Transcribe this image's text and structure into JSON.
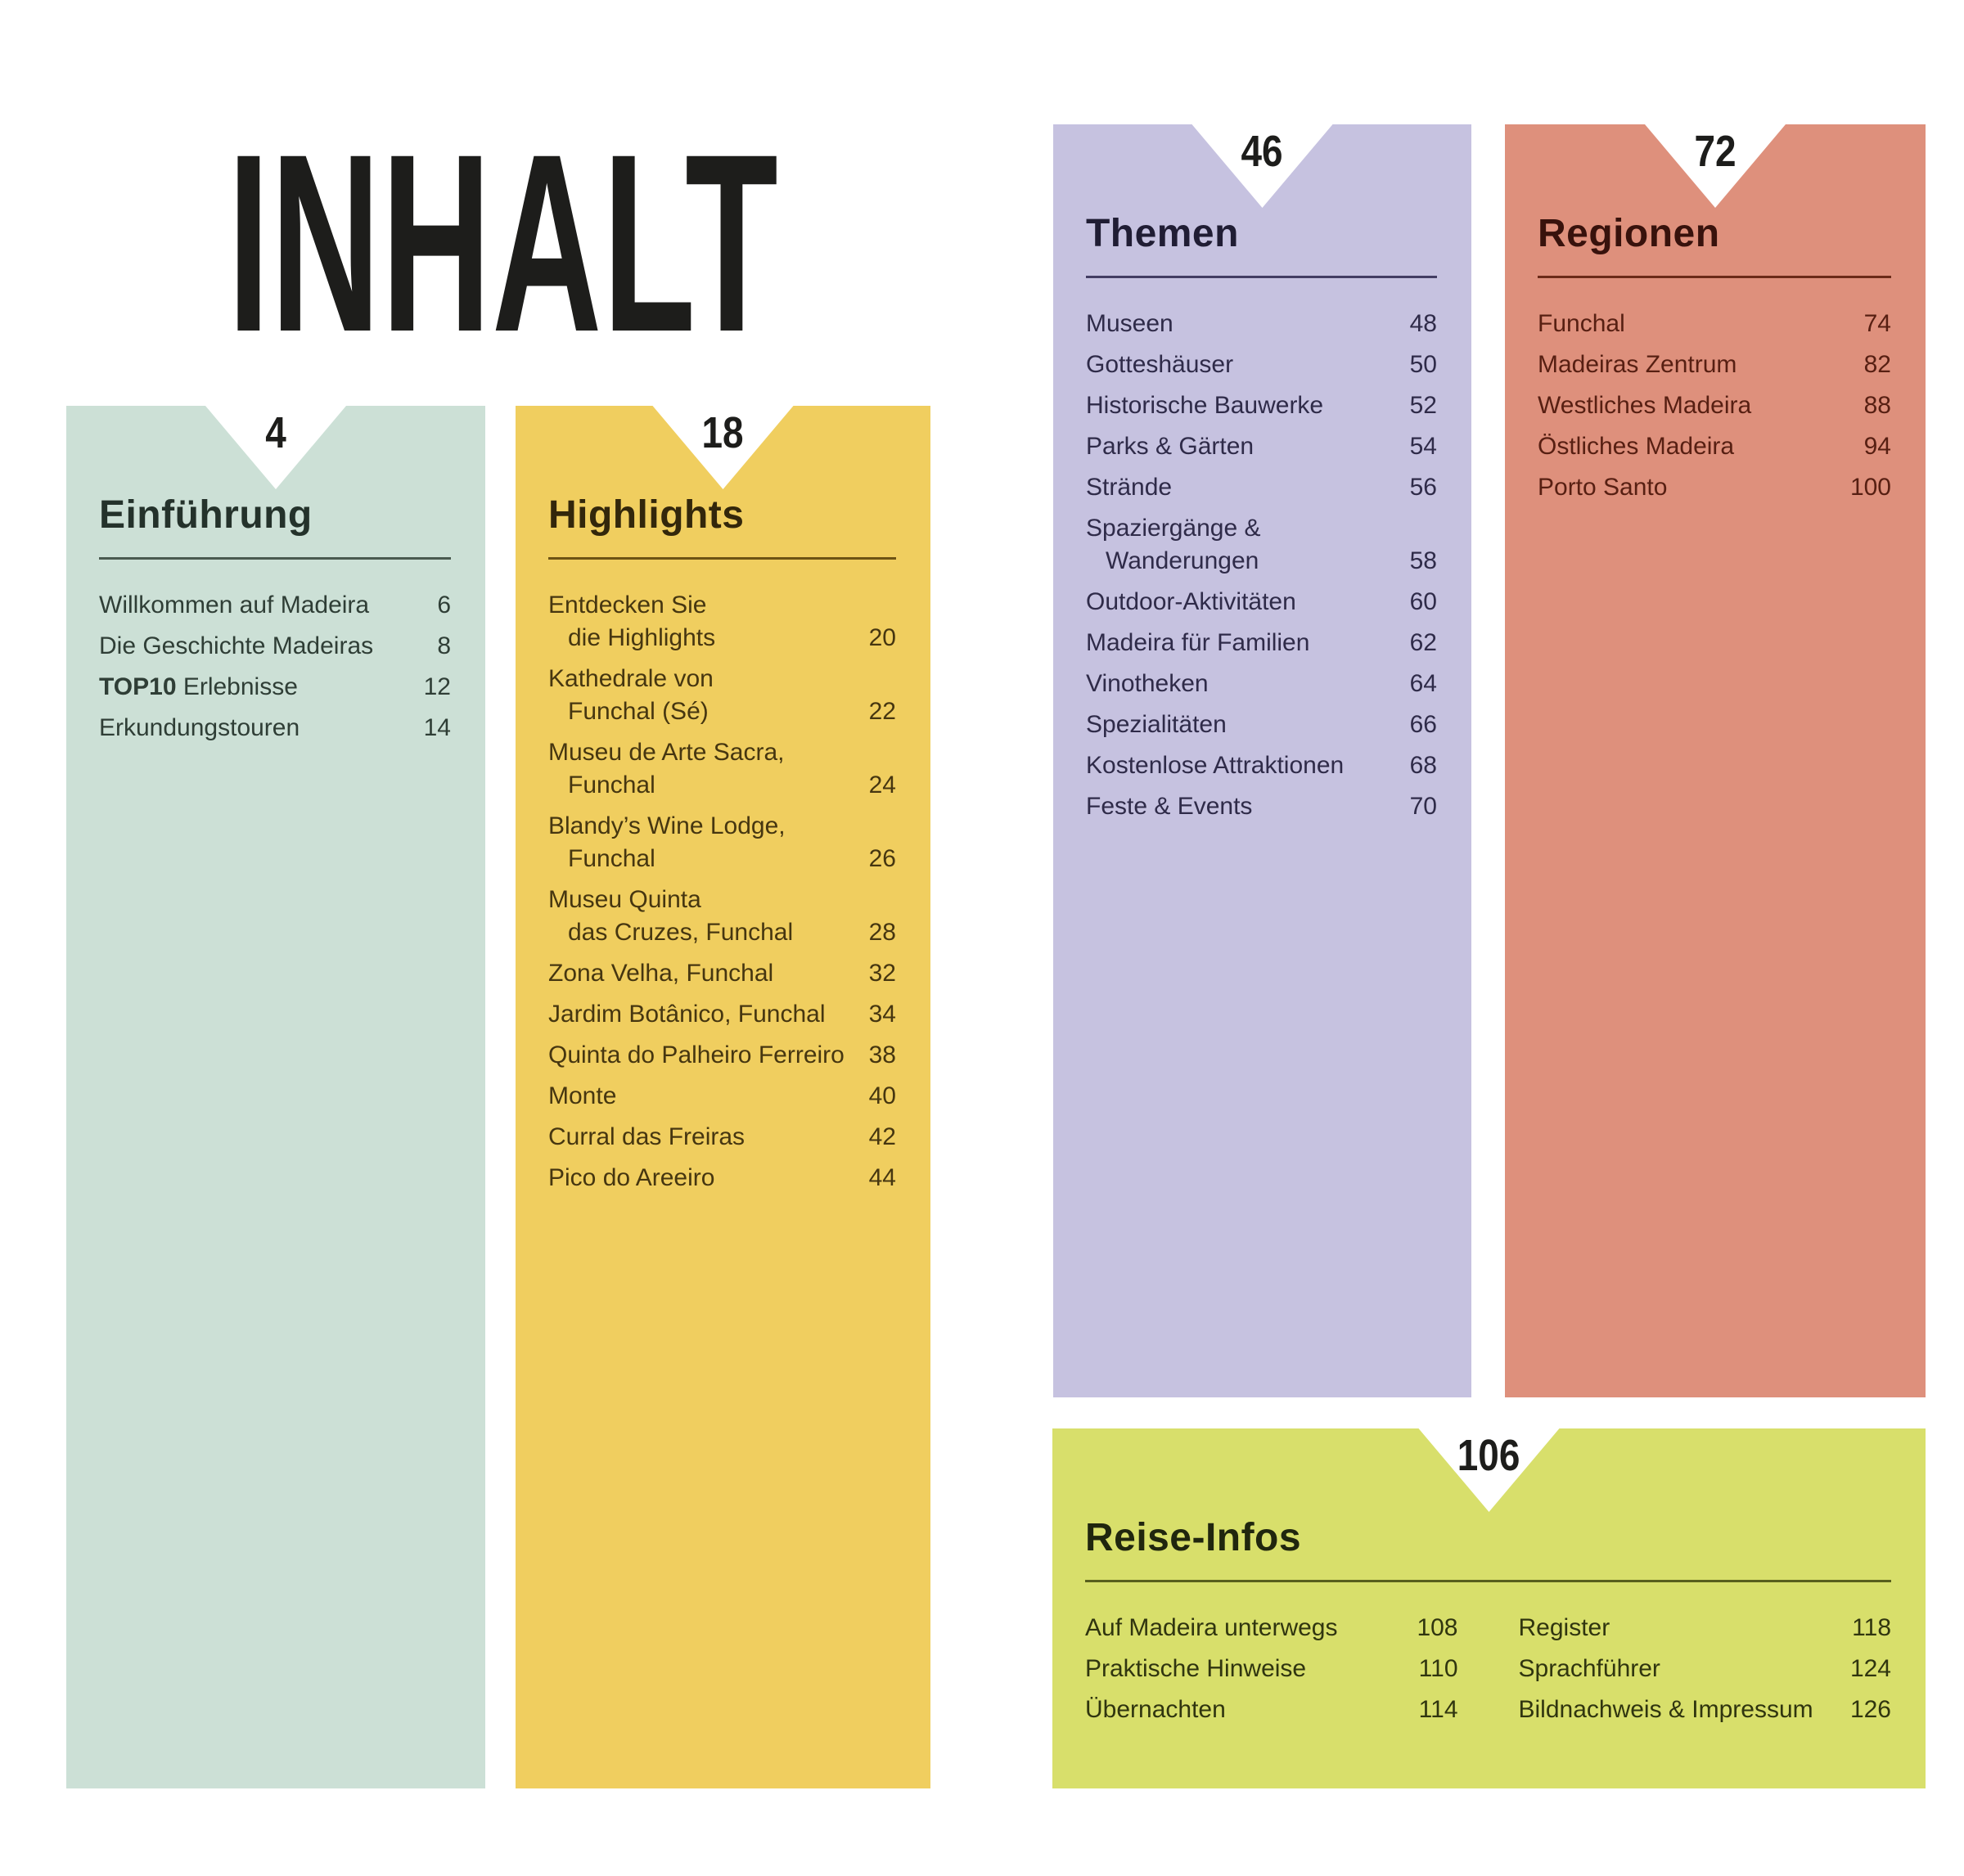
{
  "title": "INHALT",
  "colors": {
    "background": "#ffffff",
    "title": "#1d1d1b",
    "notch_number": "#1d1d1b"
  },
  "panels": [
    {
      "id": "einfuehrung",
      "page": "4",
      "heading": "Einführung",
      "colors": {
        "bg": "#cce0d6",
        "heading": "#24322b",
        "text": "#2f3e36",
        "rule": "#4a5a50"
      },
      "items": [
        {
          "lines": [
            "Willkommen auf Madeira"
          ],
          "page": "6"
        },
        {
          "lines": [
            "Die Geschichte Madeiras"
          ],
          "page": "8"
        },
        {
          "lines": [
            "TOP10 Erlebnisse"
          ],
          "bold_prefix": "TOP10",
          "page": "12"
        },
        {
          "lines": [
            "Erkundungstouren"
          ],
          "page": "14"
        }
      ]
    },
    {
      "id": "highlights",
      "page": "18",
      "heading": "Highlights",
      "colors": {
        "bg": "#f0ce5f",
        "heading": "#33270b",
        "text": "#463610",
        "rule": "#6d5314"
      },
      "items": [
        {
          "lines": [
            "Entdecken Sie",
            "die Highlights"
          ],
          "page": "20"
        },
        {
          "lines": [
            "Kathedrale von",
            "Funchal (Sé)"
          ],
          "page": "22"
        },
        {
          "lines": [
            "Museu de Arte Sacra,",
            "Funchal"
          ],
          "page": "24"
        },
        {
          "lines": [
            "Blandy’s Wine Lodge,",
            "Funchal"
          ],
          "page": "26"
        },
        {
          "lines": [
            "Museu Quinta",
            "das Cruzes, Funchal"
          ],
          "page": "28"
        },
        {
          "lines": [
            "Zona Velha, Funchal"
          ],
          "page": "32"
        },
        {
          "lines": [
            "Jardim Botânico, Funchal"
          ],
          "page": "34"
        },
        {
          "lines": [
            "Quinta do Palheiro Ferreiro"
          ],
          "page": "38"
        },
        {
          "lines": [
            "Monte"
          ],
          "page": "40"
        },
        {
          "lines": [
            "Curral das Freiras"
          ],
          "page": "42"
        },
        {
          "lines": [
            "Pico do Areeiro"
          ],
          "page": "44"
        }
      ]
    },
    {
      "id": "themen",
      "page": "46",
      "heading": "Themen",
      "colors": {
        "bg": "#c6c2e0",
        "heading": "#201d34",
        "text": "#2f2b49",
        "rule": "#433d63"
      },
      "items": [
        {
          "lines": [
            "Museen"
          ],
          "page": "48"
        },
        {
          "lines": [
            "Gotteshäuser"
          ],
          "page": "50"
        },
        {
          "lines": [
            "Historische Bauwerke"
          ],
          "page": "52"
        },
        {
          "lines": [
            "Parks & Gärten"
          ],
          "page": "54"
        },
        {
          "lines": [
            "Strände"
          ],
          "page": "56"
        },
        {
          "lines": [
            "Spaziergänge &",
            "Wanderungen"
          ],
          "page": "58"
        },
        {
          "lines": [
            "Outdoor-Aktivitäten"
          ],
          "page": "60"
        },
        {
          "lines": [
            "Madeira für Familien"
          ],
          "page": "62"
        },
        {
          "lines": [
            "Vinotheken"
          ],
          "page": "64"
        },
        {
          "lines": [
            "Spezialitäten"
          ],
          "page": "66"
        },
        {
          "lines": [
            "Kostenlose Attraktionen"
          ],
          "page": "68"
        },
        {
          "lines": [
            "Feste & Events"
          ],
          "page": "70"
        }
      ]
    },
    {
      "id": "regionen",
      "page": "72",
      "heading": "Regionen",
      "colors": {
        "bg": "#de907c",
        "heading": "#38120c",
        "text": "#571f12",
        "rule": "#6b2a18"
      },
      "items": [
        {
          "lines": [
            "Funchal"
          ],
          "page": "74"
        },
        {
          "lines": [
            "Madeiras Zentrum"
          ],
          "page": "82"
        },
        {
          "lines": [
            "Westliches Madeira"
          ],
          "page": "88"
        },
        {
          "lines": [
            "Östliches Madeira"
          ],
          "page": "94"
        },
        {
          "lines": [
            "Porto Santo"
          ],
          "page": "100"
        }
      ]
    },
    {
      "id": "reise-infos",
      "page": "106",
      "heading": "Reise-Infos",
      "colors": {
        "bg": "#d8df6b",
        "heading": "#20260e",
        "text": "#30350f",
        "rule": "#595f1d"
      },
      "columns": [
        [
          {
            "lines": [
              "Auf Madeira unterwegs"
            ],
            "page": "108"
          },
          {
            "lines": [
              "Praktische Hinweise"
            ],
            "page": "110"
          },
          {
            "lines": [
              "Übernachten"
            ],
            "page": "114"
          }
        ],
        [
          {
            "lines": [
              "Register"
            ],
            "page": "118"
          },
          {
            "lines": [
              "Sprachführer"
            ],
            "page": "124"
          },
          {
            "lines": [
              "Bildnachweis & Impressum"
            ],
            "page": "126"
          }
        ]
      ]
    }
  ]
}
